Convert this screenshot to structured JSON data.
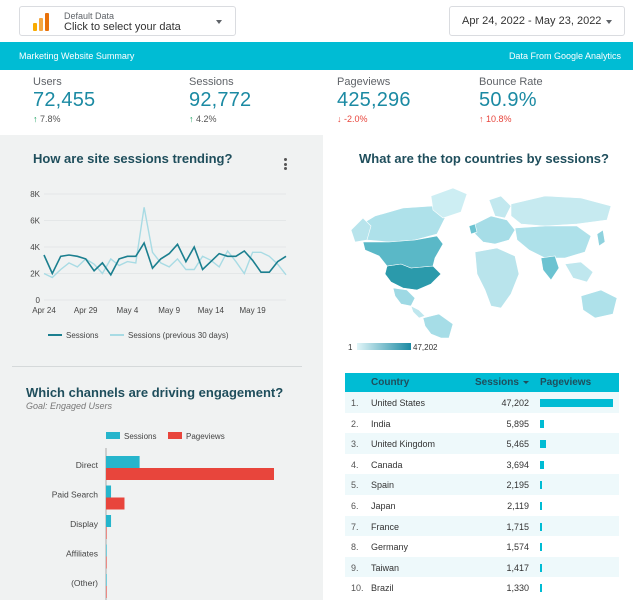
{
  "data_source": {
    "title": "Default Data",
    "subtitle": "Click to select your data"
  },
  "date_range": "Apr 24, 2022 - May 23, 2022",
  "header": {
    "left": "Marketing Website Summary",
    "right": "Data From Google Analytics"
  },
  "kpis": [
    {
      "label": "Users",
      "value": "72,455",
      "delta": "7.8%",
      "direction": "up"
    },
    {
      "label": "Sessions",
      "value": "92,772",
      "delta": "4.2%",
      "direction": "up"
    },
    {
      "label": "Pageviews",
      "value": "425,296",
      "delta": "-2.0%",
      "direction": "down"
    },
    {
      "label": "Bounce Rate",
      "value": "50.9%",
      "delta": "10.8%",
      "direction": "down"
    }
  ],
  "trend": {
    "title": "How are site sessions trending?",
    "legend": [
      "Sessions",
      "Sessions (previous 30 days)"
    ]
  },
  "map": {
    "title": "What are the top countries by sessions?",
    "scale_min": "1",
    "scale_max": "47,202"
  },
  "channels": {
    "title": "Which channels are driving engagement?",
    "subtitle": "Goal: Engaged Users",
    "legend": [
      "Sessions",
      "Pageviews"
    ]
  },
  "table": {
    "headers": {
      "country": "Country",
      "sessions": "Sessions",
      "pageviews": "Pageviews"
    },
    "rows": [
      {
        "idx": "1.",
        "country": "United States",
        "sessions": "47,202",
        "pageviews_share": 1.0
      },
      {
        "idx": "2.",
        "country": "India",
        "sessions": "5,895",
        "pageviews_share": 0.06
      },
      {
        "idx": "3.",
        "country": "United Kingdom",
        "sessions": "5,465",
        "pageviews_share": 0.08
      },
      {
        "idx": "4.",
        "country": "Canada",
        "sessions": "3,694",
        "pageviews_share": 0.06
      },
      {
        "idx": "5.",
        "country": "Spain",
        "sessions": "2,195",
        "pageviews_share": 0.02
      },
      {
        "idx": "6.",
        "country": "Japan",
        "sessions": "2,119",
        "pageviews_share": 0.03
      },
      {
        "idx": "7.",
        "country": "France",
        "sessions": "1,715",
        "pageviews_share": 0.02
      },
      {
        "idx": "8.",
        "country": "Germany",
        "sessions": "1,574",
        "pageviews_share": 0.02
      },
      {
        "idx": "9.",
        "country": "Taiwan",
        "sessions": "1,417",
        "pageviews_share": 0.02
      },
      {
        "idx": "10.",
        "country": "Brazil",
        "sessions": "1,330",
        "pageviews_share": 0.02
      }
    ]
  },
  "colors": {
    "accent": "#00bcd4",
    "primary_line": "#1b7f8f",
    "previous_line": "#a8dbe4",
    "pageviews_bar": "#e8453c",
    "sessions_bar": "#26b5cc",
    "up": "#0f9d58",
    "down": "#e8453c"
  },
  "chart_data": [
    {
      "type": "line",
      "x_ticks": [
        "Apr 24",
        "Apr 29",
        "May 4",
        "May 9",
        "May 14",
        "May 19"
      ],
      "y_ticks": [
        "0",
        "2K",
        "4K",
        "6K",
        "8K"
      ],
      "ylim": [
        0,
        8000
      ],
      "series": [
        {
          "name": "Sessions",
          "values": [
            3400,
            2000,
            3300,
            3400,
            3300,
            3100,
            2200,
            2800,
            1900,
            3100,
            3300,
            3300,
            4300,
            2400,
            3100,
            3500,
            4200,
            2900,
            4000,
            2300,
            2900,
            3500,
            3300,
            3300,
            3700,
            3000,
            2100,
            2100,
            2900,
            3300
          ]
        },
        {
          "name": "Sessions (previous 30 days)",
          "values": [
            2000,
            1700,
            2300,
            2800,
            2500,
            3100,
            2700,
            2000,
            3100,
            2600,
            2900,
            2800,
            7000,
            3600,
            2800,
            2500,
            3100,
            2300,
            2300,
            3300,
            3000,
            2500,
            3700,
            2900,
            2000,
            3600,
            3600,
            3300,
            2700,
            1900
          ]
        }
      ],
      "grid": true,
      "legend": "bottom"
    },
    {
      "type": "bar",
      "orientation": "horizontal",
      "categories": [
        "Direct",
        "Paid Search",
        "Display",
        "Affiliates",
        "(Other)"
      ],
      "series": [
        {
          "name": "Sessions",
          "values": [
            0.2,
            0.03,
            0.03,
            0.0,
            0.0
          ]
        },
        {
          "name": "Pageviews",
          "values": [
            1.0,
            0.11,
            0.0,
            0.0,
            0.0
          ]
        }
      ],
      "legend": "top"
    }
  ]
}
